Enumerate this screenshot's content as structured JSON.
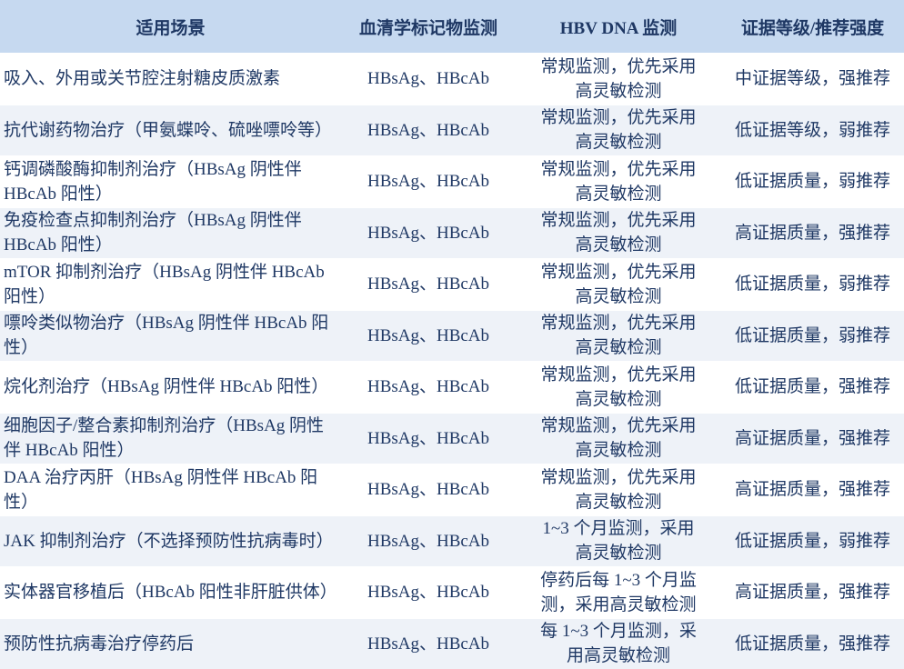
{
  "table": {
    "header": [
      "适用场景",
      "血清学标记物监测",
      "HBV DNA 监测",
      "证据等级/推荐强度"
    ],
    "rows": [
      [
        "吸入、外用或关节腔注射糖皮质激素",
        "HBsAg、HBcAb",
        "常规监测，优先采用高灵敏检测",
        "中证据等级，强推荐"
      ],
      [
        "抗代谢药物治疗（甲氨蝶呤、硫唑嘌呤等）",
        "HBsAg、HBcAb",
        "常规监测，优先采用高灵敏检测",
        "低证据等级，弱推荐"
      ],
      [
        "钙调磷酸酶抑制剂治疗（HBsAg 阴性伴 HBcAb 阳性）",
        "HBsAg、HBcAb",
        "常规监测，优先采用高灵敏检测",
        "低证据质量，弱推荐"
      ],
      [
        "免疫检查点抑制剂治疗（HBsAg 阴性伴 HBcAb 阳性）",
        "HBsAg、HBcAb",
        "常规监测，优先采用高灵敏检测",
        "高证据质量，强推荐"
      ],
      [
        "mTOR 抑制剂治疗（HBsAg 阴性伴 HBcAb 阳性）",
        "HBsAg、HBcAb",
        "常规监测，优先采用高灵敏检测",
        "低证据质量，弱推荐"
      ],
      [
        "嘌呤类似物治疗（HBsAg 阴性伴 HBcAb 阳性）",
        "HBsAg、HBcAb",
        "常规监测，优先采用高灵敏检测",
        "低证据质量，弱推荐"
      ],
      [
        "烷化剂治疗（HBsAg 阴性伴 HBcAb 阳性）",
        "HBsAg、HBcAb",
        "常规监测，优先采用高灵敏检测",
        "低证据质量，强推荐"
      ],
      [
        "细胞因子/整合素抑制剂治疗（HBsAg 阴性伴 HBcAb 阳性）",
        "HBsAg、HBcAb",
        "常规监测，优先采用高灵敏检测",
        "高证据质量，强推荐"
      ],
      [
        "DAA 治疗丙肝（HBsAg 阴性伴 HBcAb 阳性）",
        "HBsAg、HBcAb",
        "常规监测，优先采用高灵敏检测",
        "高证据质量，强推荐"
      ],
      [
        "JAK 抑制剂治疗（不选择预防性抗病毒时）",
        "HBsAg、HBcAb",
        "1~3 个月监测，采用高灵敏检测",
        "低证据质量，弱推荐"
      ],
      [
        "实体器官移植后（HBcAb 阳性非肝脏供体）",
        "HBsAg、HBcAb",
        "停药后每 1~3 个月监测，采用高灵敏检测",
        "高证据质量，强推荐"
      ],
      [
        "预防性抗病毒治疗停药后",
        "HBsAg、HBcAb",
        "每 1~3 个月监测，采用高灵敏检测",
        "低证据质量，强推荐"
      ]
    ]
  }
}
